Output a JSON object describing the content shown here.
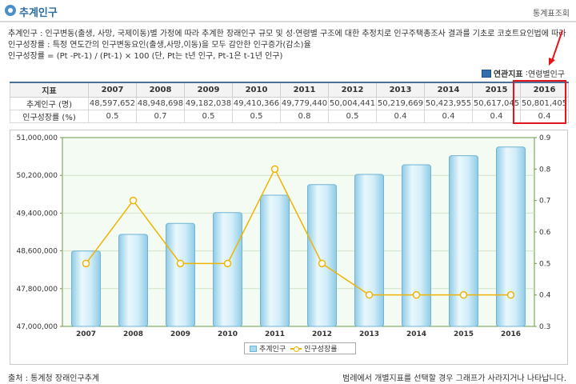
{
  "header": {
    "title": "추계인구",
    "link": "통계표조회"
  },
  "description": {
    "line1": "추계인구 : 인구변동(출생, 사망, 국제이동)별 가정에 따라 추계한 장래인구 규모 및 성·연령별 구조에 대한 추정치로 인구주택총조사 결과를 기초로 코호트요인법에 따라 추계",
    "line2": "인구성장률 : 특정 연도간의 인구변동요인(출생,사망,이동)을 모두 감안한 인구증가(감소)율",
    "line3": "인구성장률 = (Pt -Pt-1) / (Pt-1) × 100 (단, Pt는 t년 인구, Pt-1은 t-1년 인구)"
  },
  "related": {
    "label": "연관지표",
    "value": "연령별인구"
  },
  "table": {
    "header_label": "지표",
    "years": [
      "2007",
      "2008",
      "2009",
      "2010",
      "2011",
      "2012",
      "2013",
      "2014",
      "2015",
      "2016"
    ],
    "rows": [
      {
        "label": "추계인구 (명)",
        "values": [
          "48,597,652",
          "48,948,698",
          "49,182,038",
          "49,410,366",
          "49,779,440",
          "50,004,441",
          "50,219,669",
          "50,423,955",
          "50,617,045",
          "50,801,405"
        ]
      },
      {
        "label": "인구성장률 (%)",
        "values": [
          "0.5",
          "0.7",
          "0.5",
          "0.5",
          "0.8",
          "0.5",
          "0.4",
          "0.4",
          "0.4",
          "0.4"
        ]
      }
    ]
  },
  "chart_data": {
    "type": "bar",
    "categories": [
      "2007",
      "2008",
      "2009",
      "2010",
      "2011",
      "2012",
      "2013",
      "2014",
      "2015",
      "2016"
    ],
    "series": [
      {
        "name": "추계인구",
        "type": "bar",
        "axis": "left",
        "values": [
          48597652,
          48948698,
          49182038,
          49410366,
          49779440,
          50004441,
          50219669,
          50423955,
          50617045,
          50801405
        ]
      },
      {
        "name": "인구성장률",
        "type": "line",
        "axis": "right",
        "values": [
          0.5,
          0.7,
          0.5,
          0.5,
          0.8,
          0.5,
          0.4,
          0.4,
          0.4,
          0.4
        ]
      }
    ],
    "y_left": {
      "min": 47000000,
      "max": 51000000,
      "ticks": [
        "47,000,000",
        "47,800,000",
        "48,600,000",
        "49,400,000",
        "50,200,000",
        "51,000,000"
      ]
    },
    "y_right": {
      "min": 0.3,
      "max": 0.9,
      "ticks": [
        "0.3",
        "0.4",
        "0.5",
        "0.6",
        "0.7",
        "0.8",
        "0.9"
      ]
    },
    "grid": true,
    "legend_position": "bottom",
    "colors": {
      "bar": "#a9d9ef",
      "bar_edge": "#6fb3d6",
      "line": "#f0b400",
      "plot_bg": "#f4fbf2",
      "axis": "#6c9a4e"
    }
  },
  "footer": {
    "source": "출처 : 통계청 장래인구추계",
    "note": "범례에서 개별지표를 선택할 경우 그래프가 사라지거나 나타납니다."
  }
}
